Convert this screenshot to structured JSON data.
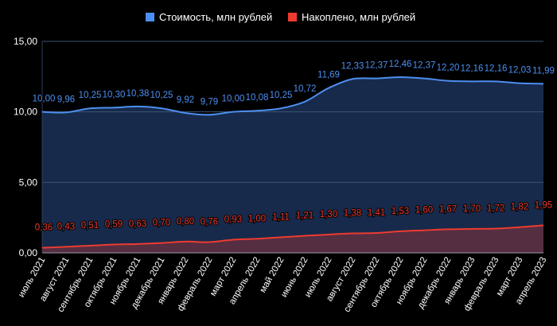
{
  "chart_data": {
    "type": "area",
    "categories": [
      "июль 2021",
      "август 2021",
      "сентябрь 2021",
      "октябрь 2021",
      "ноябрь 2021",
      "декабрь 2021",
      "январь 2022",
      "февраль 2022",
      "март 2022",
      "апрель 2022",
      "май 2022",
      "июнь 2022",
      "июль 2022",
      "август 2022",
      "сентябрь 2022",
      "октябрь 2022",
      "ноябрь 2022",
      "декабрь 2022",
      "январь 2023",
      "февраль 2023",
      "март 2023",
      "апрель 2023"
    ],
    "series": [
      {
        "name": "Стоимость, млн рублей",
        "color": "#4d8ff0",
        "fill": "#172a4b",
        "values": [
          10.0,
          9.96,
          10.25,
          10.3,
          10.38,
          10.25,
          9.92,
          9.79,
          10.0,
          10.08,
          10.25,
          10.72,
          11.69,
          12.33,
          12.37,
          12.46,
          12.37,
          12.2,
          12.16,
          12.16,
          12.03,
          11.99
        ]
      },
      {
        "name": "Накоплено, млн рублей",
        "color": "#ee3b2e",
        "fill": "#552e42",
        "values": [
          0.36,
          0.43,
          0.51,
          0.59,
          0.63,
          0.7,
          0.8,
          0.76,
          0.93,
          1.0,
          1.11,
          1.21,
          1.3,
          1.38,
          1.41,
          1.53,
          1.6,
          1.67,
          1.7,
          1.72,
          1.82,
          1.95
        ]
      }
    ],
    "yticks": [
      "0,00",
      "5,00",
      "10,00",
      "15,00"
    ],
    "ylim": [
      0,
      15
    ],
    "grid": true,
    "legend": "top",
    "decimal_separator": ","
  }
}
